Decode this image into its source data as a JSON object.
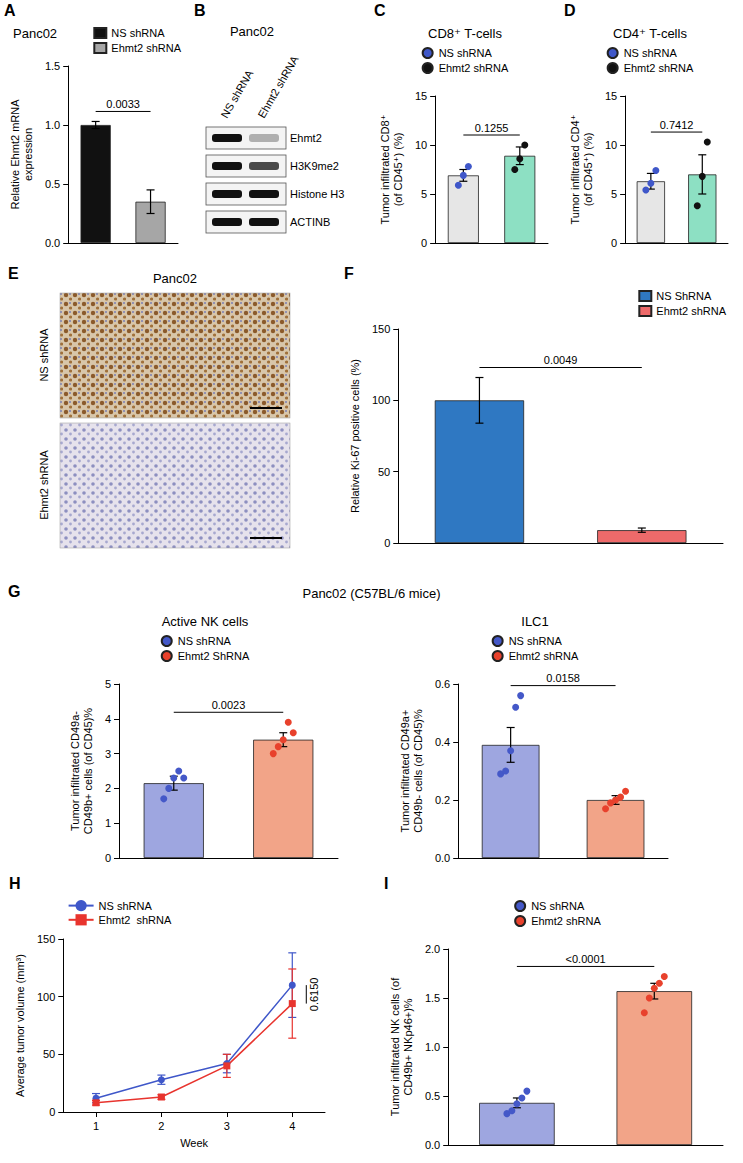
{
  "chart_data": [
    {
      "type": "bar",
      "panel": "A",
      "title": "Panc02",
      "y_label": "Relative Ehmt2 mRNA expression",
      "ylim": [
        0,
        1.5
      ],
      "yticks": [
        {
          "value": 0,
          "label": "0.0"
        },
        {
          "value": 0.5,
          "label": "0.5"
        },
        {
          "value": 1,
          "label": "1.0"
        },
        {
          "value": 1.5,
          "label": "1.5"
        }
      ],
      "series": [
        {
          "name": "NS shRNA",
          "color": "#111111",
          "values": [
            1.0
          ],
          "errors": [
            0.03
          ]
        },
        {
          "name": "Ehmt2 shRNA",
          "color": "#a6a6a6",
          "values": [
            0.35
          ],
          "errors": [
            0.1
          ]
        }
      ],
      "annotations": [
        "0.0033"
      ],
      "legend": "top-right",
      "grid": false,
      "tick_labels": "y"
    },
    {
      "type": "bar",
      "panel": "C",
      "title": "CD8⁺ T-cells",
      "y_label": "Tumor infiltrated CD8⁺ (of CD45⁺) (%)",
      "ylim": [
        0,
        15
      ],
      "yticks": [
        0,
        5,
        10,
        15
      ],
      "series": [
        {
          "name": "NS shRNA",
          "color": "#e6e6e6",
          "values": [
            6.9
          ],
          "errors": [
            0.6
          ],
          "points": {
            "color": "#3f57c9",
            "values": [
              5.9,
              6.9,
              7.8
            ]
          }
        },
        {
          "name": "Ehmt2 shRNA",
          "color": "#8de0c3",
          "values": [
            8.9
          ],
          "errors": [
            0.9
          ],
          "points": {
            "color": "#111111",
            "values": [
              7.5,
              8.6,
              10.0
            ]
          }
        }
      ],
      "annotations": [
        "0.1255"
      ],
      "legend": "top",
      "grid": false,
      "tick_labels": "y"
    },
    {
      "type": "bar",
      "panel": "D",
      "title": "CD4⁺ T-cells",
      "y_label": "Tumor infiltrated CD4⁺ (of CD45⁺) (%)",
      "ylim": [
        0,
        15
      ],
      "yticks": [
        0,
        5,
        10,
        15
      ],
      "series": [
        {
          "name": "NS shRNA",
          "color": "#e6e6e6",
          "values": [
            6.3
          ],
          "errors": [
            0.8
          ],
          "points": {
            "color": "#3f57c9",
            "values": [
              5.4,
              6.1,
              7.4
            ]
          }
        },
        {
          "name": "Ehmt2 shRNA",
          "color": "#8de0c3",
          "values": [
            7.0
          ],
          "errors": [
            2.0
          ],
          "points": {
            "color": "#111111",
            "values": [
              3.8,
              6.8,
              10.3
            ]
          }
        }
      ],
      "annotations": [
        "0.7412"
      ],
      "legend": "top",
      "grid": false,
      "tick_labels": "y"
    },
    {
      "type": "bar",
      "panel": "F",
      "y_label": "Relative Ki-67 positive cells (%)",
      "ylim": [
        0,
        150
      ],
      "yticks": [
        0,
        50,
        100,
        150
      ],
      "series": [
        {
          "name": "NS ShRNA",
          "color": "#2f78c2",
          "values": [
            100
          ],
          "errors": [
            16
          ]
        },
        {
          "name": "Ehmt2 shRNA",
          "color": "#ee6a6a",
          "values": [
            9
          ],
          "errors": [
            1.5
          ]
        }
      ],
      "annotations": [
        "0.0049"
      ],
      "legend": "top-right",
      "grid": false,
      "tick_labels": "y"
    },
    {
      "type": "bar",
      "title": "Active NK cells",
      "y_label": "Tumor infiltrated CD49a- CD49b+ cells (of CD45)%",
      "ylim": [
        0,
        5
      ],
      "yticks": [
        0,
        1,
        2,
        3,
        4,
        5
      ],
      "series": [
        {
          "name": "NS shRNA",
          "color": "#9ea6e0",
          "values": [
            2.15
          ],
          "errors": [
            0.2
          ],
          "points": {
            "color": "#4458c8",
            "values": [
              1.7,
              2.0,
              2.3,
              2.5,
              2.3
            ]
          }
        },
        {
          "name": "Ehmt2 ShRNA",
          "color": "#f2a488",
          "values": [
            3.4
          ],
          "errors": [
            0.2
          ],
          "points": {
            "color": "#e8412c",
            "values": [
              3.0,
              3.2,
              3.4,
              3.9,
              3.6
            ]
          }
        }
      ],
      "annotations": [
        "0.0023"
      ],
      "legend": "top",
      "grid": false,
      "tick_labels": "y"
    },
    {
      "type": "bar",
      "title": "ILC1",
      "y_label": "Tumor infiltrated CD49a+ CD49b- cells (of CD45)%",
      "ylim": [
        0,
        0.6
      ],
      "yticks": [
        {
          "value": 0,
          "label": "0.0"
        },
        {
          "value": 0.2,
          "label": "0.2"
        },
        {
          "value": 0.4,
          "label": "0.4"
        },
        {
          "value": 0.6,
          "label": "0.6"
        }
      ],
      "series": [
        {
          "name": "NS shRNA",
          "color": "#9ea6e0",
          "values": [
            0.39
          ],
          "errors": [
            0.06
          ],
          "points": {
            "color": "#4458c8",
            "values": [
              0.29,
              0.3,
              0.37,
              0.52,
              0.56
            ]
          }
        },
        {
          "name": "Ehmt2 shRNA",
          "color": "#f2a488",
          "values": [
            0.2
          ],
          "errors": [
            0.015
          ],
          "points": {
            "color": "#e8412c",
            "values": [
              0.17,
              0.19,
              0.2,
              0.21,
              0.23
            ]
          }
        }
      ],
      "annotations": [
        "0.0158"
      ],
      "legend": "top",
      "grid": false,
      "tick_labels": "y"
    },
    {
      "type": "line",
      "panel": "H",
      "x_label": "Week",
      "y_label": "Average tumor volume (mm³)",
      "categories": [
        "1",
        "2",
        "3",
        "4"
      ],
      "ylim": [
        0,
        150
      ],
      "yticks": [
        0,
        50,
        100,
        150
      ],
      "series": [
        {
          "name": "NS shRNA",
          "color": "#3f57c9",
          "marker": "circle",
          "values": [
            12,
            28,
            42,
            110
          ],
          "errors": [
            4,
            4,
            8,
            28
          ]
        },
        {
          "name": "Ehmt2  shRNA",
          "color": "#e8342e",
          "marker": "square",
          "values": [
            8,
            13,
            40,
            94
          ],
          "errors": [
            2,
            2,
            10,
            30
          ]
        }
      ],
      "annotations": [
        "0.6150"
      ],
      "legend": "top-left",
      "grid": false
    },
    {
      "type": "bar",
      "panel": "I",
      "y_label": "Tumor infiltrated NK cells (of CD49b+ NKp46+)%",
      "ylim": [
        0,
        2.0
      ],
      "yticks": [
        {
          "value": 0,
          "label": "0.0"
        },
        {
          "value": 0.5,
          "label": "0.5"
        },
        {
          "value": 1,
          "label": "1.0"
        },
        {
          "value": 1.5,
          "label": "1.5"
        },
        {
          "value": 2,
          "label": "2.0"
        }
      ],
      "series": [
        {
          "name": "NS shRNA",
          "color": "#9ea6e0",
          "values": [
            0.43
          ],
          "errors": [
            0.05
          ],
          "points": {
            "color": "#4458c8",
            "values": [
              0.32,
              0.35,
              0.42,
              0.48,
              0.55
            ]
          }
        },
        {
          "name": "Ehmt2 shRNA",
          "color": "#f2a488",
          "values": [
            1.57
          ],
          "errors": [
            0.08
          ],
          "points": {
            "color": "#e8412c",
            "values": [
              1.35,
              1.5,
              1.6,
              1.65,
              1.72
            ]
          }
        }
      ],
      "annotations": [
        "<0.0001"
      ],
      "legend": "top",
      "grid": false,
      "tick_labels": "y"
    }
  ],
  "blot": {
    "panel": "B",
    "title": "Panc02",
    "lanes": [
      "NS shRNA",
      "Ehmt2 shRNA"
    ],
    "rows": [
      {
        "label": "Ehmt2",
        "bands": [
          1,
          0.3
        ]
      },
      {
        "label": "H3K9me2",
        "bands": [
          1,
          0.75
        ]
      },
      {
        "label": "Histone H3",
        "bands": [
          1,
          1
        ]
      },
      {
        "label": "ACTINB",
        "bands": [
          1,
          1
        ]
      }
    ]
  },
  "ihc": {
    "panel": "E",
    "title": "Panc02",
    "rows": [
      "NS shRNA",
      "Ehmt2 shRNA"
    ]
  },
  "headers": [
    {
      "panel": "G",
      "text": "Panc02 (C57BL/6 mice)"
    }
  ]
}
